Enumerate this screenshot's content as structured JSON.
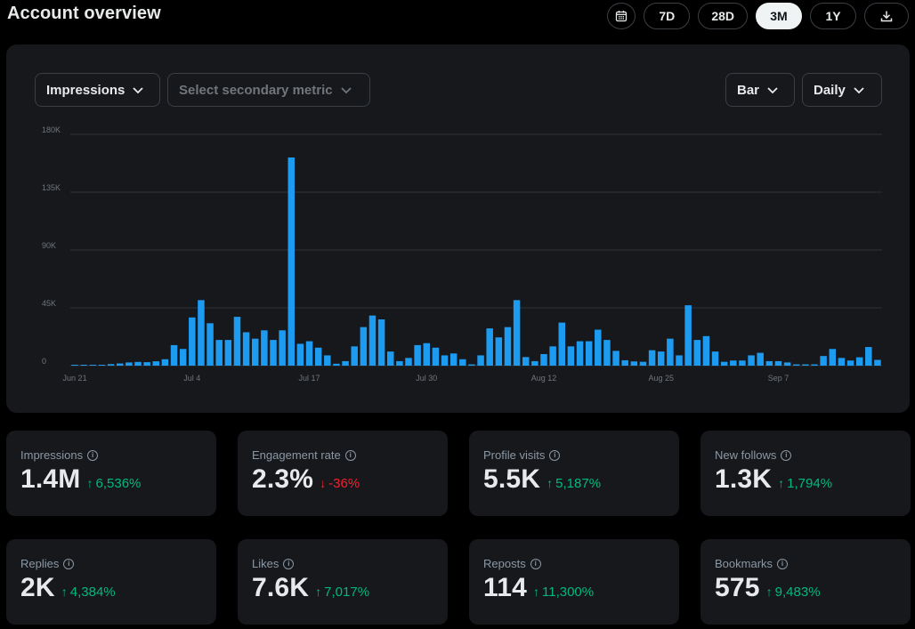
{
  "header": {
    "title": "Account overview",
    "ranges": [
      "7D",
      "28D",
      "3M",
      "1Y"
    ],
    "active_range": "3M"
  },
  "chart_controls": {
    "primary_metric": "Impressions",
    "secondary_placeholder": "Select secondary metric",
    "chart_type": "Bar",
    "interval": "Daily"
  },
  "chart_data": {
    "type": "bar",
    "series": [
      {
        "name": "Impressions",
        "color": "#1d9bf0"
      }
    ],
    "yticks": [
      "0",
      "45K",
      "90K",
      "135K",
      "180K"
    ],
    "ylim": [
      0,
      180000
    ],
    "xtick_labels": [
      {
        "label": "Jun 21",
        "index": 0
      },
      {
        "label": "Jul 4",
        "index": 13
      },
      {
        "label": "Jul 17",
        "index": 26
      },
      {
        "label": "Jul 30",
        "index": 39
      },
      {
        "label": "Aug 12",
        "index": 52
      },
      {
        "label": "Aug 25",
        "index": 65
      },
      {
        "label": "Sep 7",
        "index": 78
      }
    ],
    "values": [
      200,
      200,
      300,
      500,
      1200,
      1700,
      2500,
      2900,
      2700,
      3400,
      5000,
      16000,
      13000,
      37500,
      51000,
      33000,
      20000,
      20000,
      38000,
      26000,
      21000,
      27500,
      20000,
      27500,
      162000,
      17000,
      19000,
      14000,
      8000,
      1500,
      3500,
      15000,
      30000,
      39000,
      36000,
      11000,
      3500,
      6000,
      16000,
      17500,
      14000,
      8000,
      9500,
      5000,
      1000,
      8000,
      29000,
      22000,
      30000,
      51000,
      6700,
      3500,
      9000,
      15000,
      33500,
      15000,
      19000,
      19000,
      28000,
      20000,
      11500,
      4200,
      3300,
      3000,
      12000,
      11000,
      21000,
      8000,
      47000,
      20000,
      23000,
      11000,
      3000,
      4000,
      4000,
      8000,
      10000,
      3500,
      3500,
      2500,
      1000,
      1000,
      1000,
      7500,
      13000,
      6000,
      4000,
      6500,
      14500,
      4500
    ]
  },
  "cards": [
    {
      "label": "Impressions",
      "value": "1.4M",
      "change": "6,536%",
      "direction": "up"
    },
    {
      "label": "Engagement rate",
      "value": "2.3%",
      "change": "-36%",
      "direction": "down"
    },
    {
      "label": "Profile visits",
      "value": "5.5K",
      "change": "5,187%",
      "direction": "up"
    },
    {
      "label": "New follows",
      "value": "1.3K",
      "change": "1,794%",
      "direction": "up"
    },
    {
      "label": "Replies",
      "value": "2K",
      "change": "4,384%",
      "direction": "up"
    },
    {
      "label": "Likes",
      "value": "7.6K",
      "change": "7,017%",
      "direction": "up"
    },
    {
      "label": "Reposts",
      "value": "114",
      "change": "11,300%",
      "direction": "up"
    },
    {
      "label": "Bookmarks",
      "value": "575",
      "change": "9,483%",
      "direction": "up"
    }
  ]
}
